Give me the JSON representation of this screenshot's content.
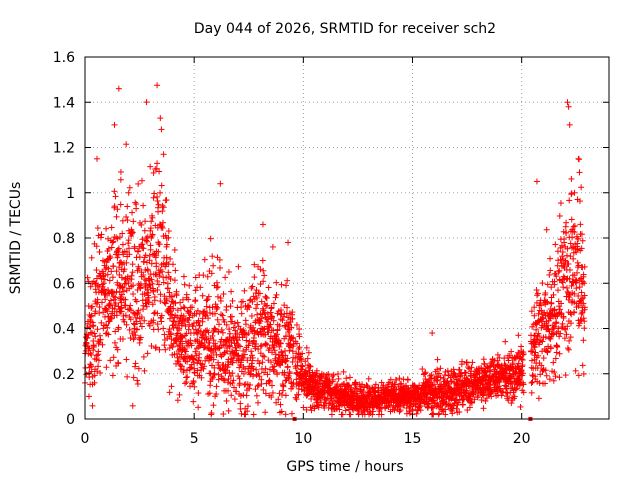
{
  "chart_data": {
    "type": "scatter",
    "title": "Day 044 of 2026, SRMTID for receiver sch2",
    "xlabel": "GPS time / hours",
    "ylabel": "SRMTID / TECUs",
    "xlim": [
      0,
      24
    ],
    "ylim": [
      0,
      1.6
    ],
    "xticks": [
      0,
      5,
      10,
      15,
      20
    ],
    "xtick_labels": [
      "0",
      "5",
      "10",
      "15",
      "20"
    ],
    "yticks": [
      0,
      0.2,
      0.4,
      0.6,
      0.8,
      1,
      1.2,
      1.4,
      1.6
    ],
    "ytick_labels": [
      "0",
      "0.2",
      "0.4",
      "0.6",
      "0.8",
      "1",
      "1.2",
      "1.4",
      "1.6"
    ],
    "grid": true,
    "marker": "+",
    "color": "#ff0000",
    "outlier_markers_x": [
      9.6,
      20.4
    ],
    "x_step_hours": 0.01,
    "x_start": 0,
    "envelope": [
      {
        "x": 0.0,
        "base": 0.28,
        "spread": 0.12
      },
      {
        "x": 0.5,
        "base": 0.45,
        "spread": 0.25
      },
      {
        "x": 1.0,
        "base": 0.55,
        "spread": 0.25
      },
      {
        "x": 1.5,
        "base": 0.6,
        "spread": 0.3
      },
      {
        "x": 2.0,
        "base": 0.6,
        "spread": 0.28
      },
      {
        "x": 2.5,
        "base": 0.55,
        "spread": 0.3
      },
      {
        "x": 3.0,
        "base": 0.65,
        "spread": 0.3
      },
      {
        "x": 3.5,
        "base": 0.7,
        "spread": 0.32
      },
      {
        "x": 4.0,
        "base": 0.45,
        "spread": 0.2
      },
      {
        "x": 4.5,
        "base": 0.35,
        "spread": 0.18
      },
      {
        "x": 5.0,
        "base": 0.33,
        "spread": 0.18
      },
      {
        "x": 5.5,
        "base": 0.38,
        "spread": 0.22
      },
      {
        "x": 6.0,
        "base": 0.35,
        "spread": 0.25
      },
      {
        "x": 6.5,
        "base": 0.3,
        "spread": 0.18
      },
      {
        "x": 7.0,
        "base": 0.28,
        "spread": 0.18
      },
      {
        "x": 7.5,
        "base": 0.3,
        "spread": 0.2
      },
      {
        "x": 8.0,
        "base": 0.38,
        "spread": 0.25
      },
      {
        "x": 8.5,
        "base": 0.35,
        "spread": 0.2
      },
      {
        "x": 9.0,
        "base": 0.3,
        "spread": 0.2
      },
      {
        "x": 9.5,
        "base": 0.33,
        "spread": 0.2
      },
      {
        "x": 10.0,
        "base": 0.18,
        "spread": 0.08
      },
      {
        "x": 10.5,
        "base": 0.14,
        "spread": 0.07
      },
      {
        "x": 11.0,
        "base": 0.12,
        "spread": 0.06
      },
      {
        "x": 12.0,
        "base": 0.1,
        "spread": 0.06
      },
      {
        "x": 12.5,
        "base": 0.08,
        "spread": 0.05
      },
      {
        "x": 13.0,
        "base": 0.09,
        "spread": 0.05
      },
      {
        "x": 14.0,
        "base": 0.1,
        "spread": 0.05
      },
      {
        "x": 15.0,
        "base": 0.1,
        "spread": 0.05
      },
      {
        "x": 16.0,
        "base": 0.11,
        "spread": 0.07
      },
      {
        "x": 17.0,
        "base": 0.13,
        "spread": 0.07
      },
      {
        "x": 18.0,
        "base": 0.16,
        "spread": 0.07
      },
      {
        "x": 19.0,
        "base": 0.18,
        "spread": 0.07
      },
      {
        "x": 20.0,
        "base": 0.2,
        "spread": 0.08
      },
      {
        "x": 20.5,
        "base": 0.3,
        "spread": 0.15
      },
      {
        "x": 21.0,
        "base": 0.4,
        "spread": 0.2
      },
      {
        "x": 21.5,
        "base": 0.45,
        "spread": 0.2
      },
      {
        "x": 22.0,
        "base": 0.65,
        "spread": 0.3
      },
      {
        "x": 22.5,
        "base": 0.7,
        "spread": 0.3
      },
      {
        "x": 22.9,
        "base": 0.5,
        "spread": 0.2
      }
    ],
    "peaks": [
      {
        "x": 1.35,
        "y": 1.3
      },
      {
        "x": 1.55,
        "y": 1.46
      },
      {
        "x": 0.55,
        "y": 1.15
      },
      {
        "x": 3.45,
        "y": 1.33
      },
      {
        "x": 3.5,
        "y": 1.28
      },
      {
        "x": 3.6,
        "y": 1.17
      },
      {
        "x": 3.3,
        "y": 1.13
      },
      {
        "x": 6.2,
        "y": 1.04
      },
      {
        "x": 8.15,
        "y": 0.86
      },
      {
        "x": 9.3,
        "y": 0.78
      },
      {
        "x": 15.9,
        "y": 0.38
      },
      {
        "x": 19.85,
        "y": 0.37
      },
      {
        "x": 20.7,
        "y": 1.05
      },
      {
        "x": 22.1,
        "y": 1.4
      },
      {
        "x": 22.15,
        "y": 1.38
      },
      {
        "x": 22.2,
        "y": 1.3
      },
      {
        "x": 22.6,
        "y": 1.15
      },
      {
        "x": 22.65,
        "y": 1.09
      }
    ],
    "gaps": [
      [
        9.55,
        9.62
      ],
      [
        20.1,
        20.42
      ],
      [
        22.9,
        24
      ]
    ]
  }
}
